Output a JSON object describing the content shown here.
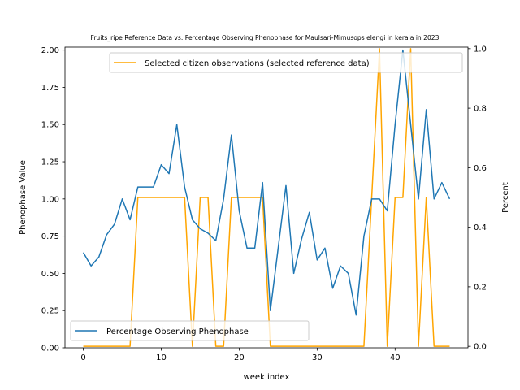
{
  "chart_data": {
    "type": "line",
    "title": "Fruits_ripe Reference Data vs. Percentage Observing Phenophase for Maulsari-Mimusops elengi in kerala in 2023",
    "xlabel": "week index",
    "ylabel_left": "Phenophase Value",
    "ylabel_right": "Percent",
    "xlim": [
      -2.35,
      49.35
    ],
    "ylim_left": [
      0,
      2.02
    ],
    "ylim_right": [
      -0.005,
      1.005
    ],
    "x_ticks": [
      0,
      10,
      20,
      30,
      40
    ],
    "y_ticks_left": [
      0.0,
      0.25,
      0.5,
      0.75,
      1.0,
      1.25,
      1.5,
      1.75,
      2.0
    ],
    "y_ticks_left_labels": [
      "0.00",
      "0.25",
      "0.50",
      "0.75",
      "1.00",
      "1.25",
      "1.50",
      "1.75",
      "2.00"
    ],
    "y_ticks_right": [
      0.0,
      0.2,
      0.4,
      0.6,
      0.8,
      1.0
    ],
    "y_ticks_right_labels": [
      "0.0",
      "0.2",
      "0.4",
      "0.6",
      "0.8",
      "1.0"
    ],
    "grid": false,
    "series": [
      {
        "name": "Percentage Observing Phenophase",
        "axis": "left",
        "color": "#1f77b4",
        "x": [
          0,
          1,
          2,
          3,
          4,
          5,
          6,
          7,
          8,
          9,
          10,
          11,
          12,
          13,
          14,
          15,
          16,
          17,
          18,
          19,
          20,
          21,
          22,
          23,
          24,
          25,
          26,
          27,
          28,
          29,
          30,
          31,
          32,
          33,
          34,
          35,
          36,
          37,
          38,
          39,
          40,
          41,
          42,
          43,
          44,
          45,
          46,
          47
        ],
        "values": [
          0.64,
          0.55,
          0.61,
          0.76,
          0.83,
          1.0,
          0.86,
          1.08,
          1.08,
          1.08,
          1.23,
          1.17,
          1.5,
          1.08,
          0.86,
          0.8,
          0.77,
          0.72,
          1.0,
          1.43,
          0.92,
          0.67,
          0.67,
          1.11,
          0.25,
          0.67,
          1.09,
          0.5,
          0.73,
          0.91,
          0.59,
          0.67,
          0.4,
          0.55,
          0.5,
          0.22,
          0.75,
          1.0,
          1.0,
          0.92,
          1.5,
          2.0,
          1.5,
          1.0,
          1.6,
          1.0,
          1.11,
          1.0
        ]
      },
      {
        "name": "Selected citizen observations (selected reference data)",
        "axis": "right",
        "color": "#ffa500",
        "x": [
          0,
          1,
          2,
          3,
          4,
          5,
          6,
          7,
          8,
          9,
          10,
          11,
          12,
          13,
          14,
          15,
          16,
          17,
          18,
          19,
          20,
          21,
          22,
          23,
          24,
          25,
          26,
          27,
          28,
          29,
          30,
          31,
          32,
          33,
          34,
          35,
          36,
          37,
          38,
          39,
          40,
          41,
          42,
          43,
          44,
          45,
          46,
          47
        ],
        "values": [
          0,
          0,
          0,
          0,
          0,
          0,
          0,
          0.5,
          0.5,
          0.5,
          0.5,
          0.5,
          0.5,
          0.5,
          0,
          0.5,
          0.5,
          0,
          0,
          0.5,
          0.5,
          0.5,
          0.5,
          0.5,
          0,
          0,
          0,
          0,
          0,
          0,
          0,
          0,
          0,
          0,
          0,
          0,
          0,
          0.5,
          1,
          0,
          0.5,
          0.5,
          1,
          0,
          0.5,
          0,
          0,
          0
        ]
      }
    ],
    "legends": [
      {
        "placement": "upper-right",
        "series": 1
      },
      {
        "placement": "lower-left",
        "series": 0
      }
    ]
  }
}
